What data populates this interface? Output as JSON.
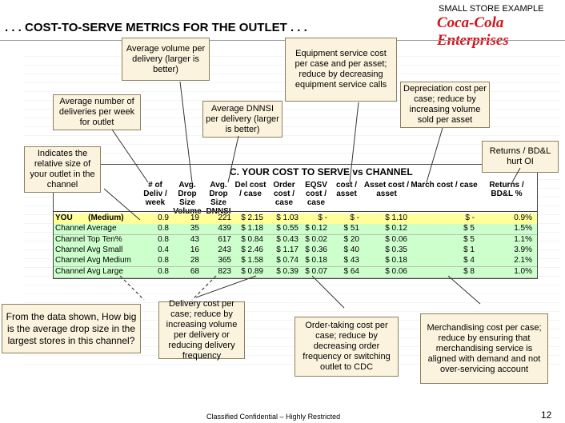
{
  "header": {
    "tag": "SMALL STORE EXAMPLE",
    "title": ". . . COST-TO-SERVE METRICS FOR THE OUTLET . . .",
    "logo": "Coca-Cola Enterprises"
  },
  "table": {
    "title": "C. YOUR COST TO SERVE vs CHANNEL",
    "columns": [
      "",
      "# of Deliv / week",
      "Avg. Drop Size Volume",
      "Avg. Drop Size DNNSI",
      "Del cost / case",
      "Order cost / case",
      "EQSV cost / case",
      "cost / asset",
      "Asset cost / asset",
      "March cost / case",
      "Returns / BD&L %"
    ],
    "rows": [
      [
        "YOU       (Medium)",
        "0.9",
        "19",
        "221",
        "$ 2.15",
        "$ 1.03",
        "$ -",
        "$ -",
        "$ 1.10",
        "$ -",
        "0.9%"
      ],
      [
        "Channel Average",
        "0.8",
        "35",
        "439",
        "$ 1.18",
        "$ 0.55",
        "$ 0.12",
        "$ 51",
        "$ 0.12",
        "$ 5",
        "1.5%"
      ],
      [
        "Channel Top Ten%",
        "0.8",
        "43",
        "617",
        "$ 0.84",
        "$ 0.43",
        "$ 0.02",
        "$ 20",
        "$ 0.06",
        "$ 5",
        "1.1%"
      ],
      [
        "Channel Avg Small",
        "0.4",
        "16",
        "243",
        "$ 2.46",
        "$ 1.17",
        "$ 0.36",
        "$ 40",
        "$ 0.35",
        "$ 1",
        "3.9%"
      ],
      [
        "Channel Avg Medium",
        "0.8",
        "28",
        "365",
        "$ 1.58",
        "$ 0.74",
        "$ 0.18",
        "$ 43",
        "$ 0.18",
        "$ 4",
        "2.1%"
      ],
      [
        "Channel Avg Large",
        "0.8",
        "68",
        "823",
        "$ 0.89",
        "$ 0.39",
        "$ 0.07",
        "$ 64",
        "$ 0.06",
        "$ 8",
        "1.0%"
      ]
    ]
  },
  "callouts": [
    "Average volume per delivery (larger is better)",
    "Equipment service cost per case and per asset; reduce by decreasing equipment service calls",
    "Depreciation cost per case; reduce by increasing volume sold per asset",
    "Average number of deliveries per week for outlet",
    "Average DNNSI per delivery (larger is better)",
    "Indicates the relative size of your outlet in the channel",
    "Returns / BD&L hurt OI",
    "From the data shown, How big is the average drop size in the largest stores in this channel?",
    "Delivery cost per case; reduce by increasing volume per delivery or reducing delivery frequency",
    "Order-taking cost per case; reduce by decreasing order frequency or switching outlet to CDC",
    "Merchandising cost per case; reduce by ensuring that merchandising service is aligned with demand and not over-servicing account"
  ],
  "footer": {
    "note": "Classified Confidential – Highly Restricted",
    "page": "12"
  }
}
